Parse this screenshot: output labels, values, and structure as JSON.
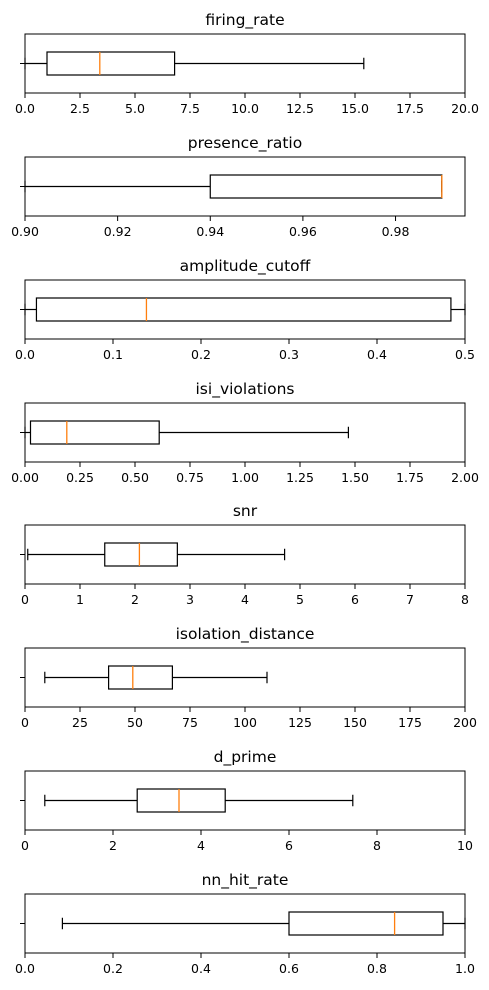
{
  "chart_data": [
    {
      "type": "box",
      "title": "firing_rate",
      "xlim": [
        0,
        20
      ],
      "ticks": [
        0,
        2.5,
        5,
        7.5,
        10,
        12.5,
        15,
        17.5,
        20
      ],
      "tick_labels": [
        "0.0",
        "2.5",
        "5.0",
        "7.5",
        "10.0",
        "12.5",
        "15.0",
        "17.5",
        "20.0"
      ],
      "box": {
        "whisker_low": 0.0,
        "q1": 1.0,
        "median": 3.4,
        "q3": 6.8,
        "whisker_high": 15.4
      }
    },
    {
      "type": "box",
      "title": "presence_ratio",
      "xlim": [
        0.9,
        0.995
      ],
      "ticks": [
        0.9,
        0.92,
        0.94,
        0.96,
        0.98
      ],
      "tick_labels": [
        "0.90",
        "0.92",
        "0.94",
        "0.96",
        "0.98"
      ],
      "box": {
        "whisker_low": 0.9,
        "q1": 0.94,
        "median": 0.99,
        "q3": 0.99,
        "whisker_high": 0.99
      }
    },
    {
      "type": "box",
      "title": "amplitude_cutoff",
      "xlim": [
        0,
        0.5
      ],
      "ticks": [
        0,
        0.1,
        0.2,
        0.3,
        0.4,
        0.5
      ],
      "tick_labels": [
        "0.0",
        "0.1",
        "0.2",
        "0.3",
        "0.4",
        "0.5"
      ],
      "box": {
        "whisker_low": 0.0,
        "q1": 0.013,
        "median": 0.138,
        "q3": 0.484,
        "whisker_high": 0.5
      }
    },
    {
      "type": "box",
      "title": "isi_violations",
      "xlim": [
        0,
        2
      ],
      "ticks": [
        0,
        0.25,
        0.5,
        0.75,
        1.0,
        1.25,
        1.5,
        1.75,
        2.0
      ],
      "tick_labels": [
        "0.00",
        "0.25",
        "0.50",
        "0.75",
        "1.00",
        "1.25",
        "1.50",
        "1.75",
        "2.00"
      ],
      "box": {
        "whisker_low": 0.0,
        "q1": 0.025,
        "median": 0.19,
        "q3": 0.61,
        "whisker_high": 1.47
      }
    },
    {
      "type": "box",
      "title": "snr",
      "xlim": [
        0,
        8
      ],
      "ticks": [
        0,
        1,
        2,
        3,
        4,
        5,
        6,
        7,
        8
      ],
      "tick_labels": [
        "0",
        "1",
        "2",
        "3",
        "4",
        "5",
        "6",
        "7",
        "8"
      ],
      "box": {
        "whisker_low": 0.05,
        "q1": 1.45,
        "median": 2.08,
        "q3": 2.77,
        "whisker_high": 4.72
      }
    },
    {
      "type": "box",
      "title": "isolation_distance",
      "xlim": [
        0,
        200
      ],
      "ticks": [
        0,
        25,
        50,
        75,
        100,
        125,
        150,
        175,
        200
      ],
      "tick_labels": [
        "0",
        "25",
        "50",
        "75",
        "100",
        "125",
        "150",
        "175",
        "200"
      ],
      "box": {
        "whisker_low": 9,
        "q1": 38,
        "median": 49,
        "q3": 67,
        "whisker_high": 110
      }
    },
    {
      "type": "box",
      "title": "d_prime",
      "xlim": [
        0,
        10
      ],
      "ticks": [
        0,
        2,
        4,
        6,
        8,
        10
      ],
      "tick_labels": [
        "0",
        "2",
        "4",
        "6",
        "8",
        "10"
      ],
      "box": {
        "whisker_low": 0.45,
        "q1": 2.55,
        "median": 3.5,
        "q3": 4.55,
        "whisker_high": 7.45
      }
    },
    {
      "type": "box",
      "title": "nn_hit_rate",
      "xlim": [
        0,
        1
      ],
      "ticks": [
        0,
        0.2,
        0.4,
        0.6,
        0.8,
        1.0
      ],
      "tick_labels": [
        "0.0",
        "0.2",
        "0.4",
        "0.6",
        "0.8",
        "1.0"
      ],
      "box": {
        "whisker_low": 0.085,
        "q1": 0.6,
        "median": 0.84,
        "q3": 0.95,
        "whisker_high": 1.0
      }
    }
  ],
  "colors": {
    "axes": "#000000",
    "box": "#000000",
    "whisker": "#000000",
    "median": "#ff7f0e",
    "background": "#ffffff"
  }
}
